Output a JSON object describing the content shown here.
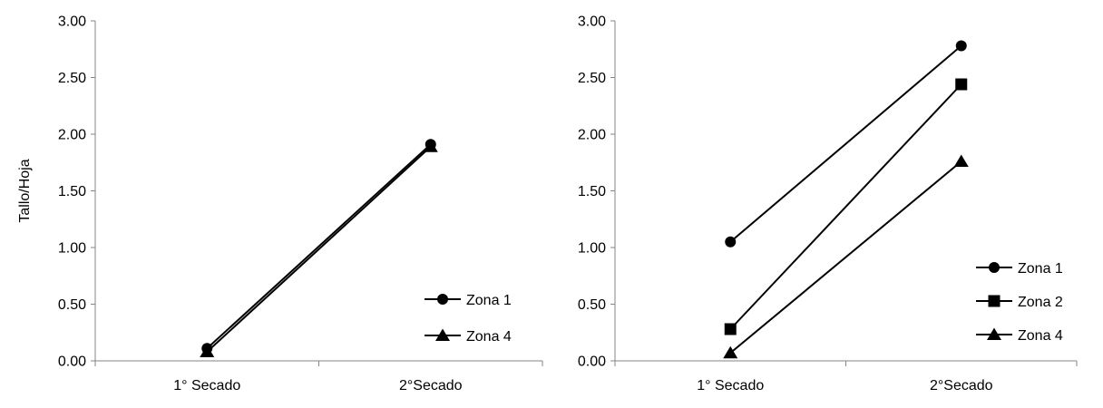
{
  "chart_data": [
    {
      "type": "line",
      "categories": [
        "1° Secado",
        "2°Secado"
      ],
      "ylabel": "Tallo/Hoja",
      "ylim": [
        0,
        3
      ],
      "yticks": [
        "0.00",
        "0.50",
        "1.00",
        "1.50",
        "2.00",
        "2.50",
        "3.00"
      ],
      "grid": false,
      "legend_position": "bottom-right",
      "series": [
        {
          "name": "Zona 1",
          "marker": "circle",
          "values": [
            0.11,
            1.91
          ]
        },
        {
          "name": "Zona 4",
          "marker": "triangle",
          "values": [
            0.08,
            1.89
          ]
        }
      ]
    },
    {
      "type": "line",
      "categories": [
        "1° Secado",
        "2°Secado"
      ],
      "ylabel": "",
      "ylim": [
        0,
        3
      ],
      "yticks": [
        "0.00",
        "0.50",
        "1.00",
        "1.50",
        "2.00",
        "2.50",
        "3.00"
      ],
      "grid": false,
      "legend_position": "bottom-right",
      "series": [
        {
          "name": "Zona 1",
          "marker": "circle",
          "values": [
            1.05,
            2.78
          ]
        },
        {
          "name": "Zona 2",
          "marker": "square",
          "values": [
            0.28,
            2.44
          ]
        },
        {
          "name": "Zona 4",
          "marker": "triangle",
          "values": [
            0.07,
            1.76
          ]
        }
      ]
    }
  ]
}
